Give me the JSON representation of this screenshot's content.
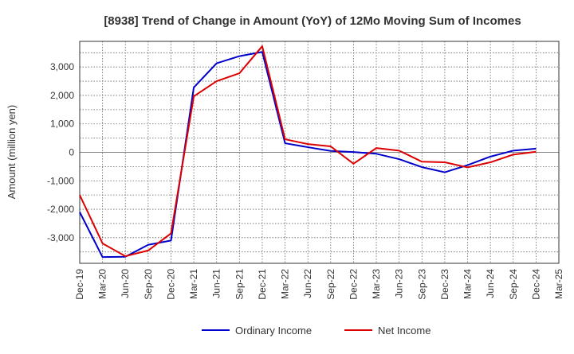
{
  "chart_data": {
    "type": "line",
    "title": "[8938]  Trend of Change in Amount (YoY) of 12Mo Moving Sum of Incomes",
    "xlabel": "",
    "ylabel": "Amount (million yen)",
    "ylim": [
      -3900,
      3900
    ],
    "yticks": [
      -3000,
      -2000,
      -1000,
      0,
      1000,
      2000,
      3000
    ],
    "ytick_labels": [
      "-3,000",
      "-2,000",
      "-1,000",
      "0",
      "1,000",
      "2,000",
      "3,000"
    ],
    "categories": [
      "Dec-19",
      "Mar-20",
      "Jun-20",
      "Sep-20",
      "Dec-20",
      "Mar-21",
      "Jun-21",
      "Sep-21",
      "Dec-21",
      "Mar-22",
      "Jun-22",
      "Sep-22",
      "Dec-22",
      "Mar-23",
      "Jun-23",
      "Sep-23",
      "Dec-23",
      "Mar-24",
      "Jun-24",
      "Sep-24",
      "Dec-24",
      "Mar-25"
    ],
    "grid": true,
    "legend": "bottom",
    "series": [
      {
        "name": "Ordinary Income",
        "color": "#0000cc",
        "values": [
          -2100,
          -3680,
          -3670,
          -3250,
          -3100,
          2280,
          3130,
          3380,
          3530,
          320,
          180,
          50,
          10,
          -50,
          -240,
          -520,
          -700,
          -450,
          -150,
          60,
          130,
          null
        ]
      },
      {
        "name": "Net Income",
        "color": "#dd0000",
        "values": [
          -1500,
          -3200,
          -3650,
          -3450,
          -2850,
          1970,
          2500,
          2780,
          3730,
          460,
          290,
          210,
          -400,
          150,
          60,
          -330,
          -350,
          -530,
          -350,
          -80,
          20,
          null
        ]
      }
    ]
  }
}
